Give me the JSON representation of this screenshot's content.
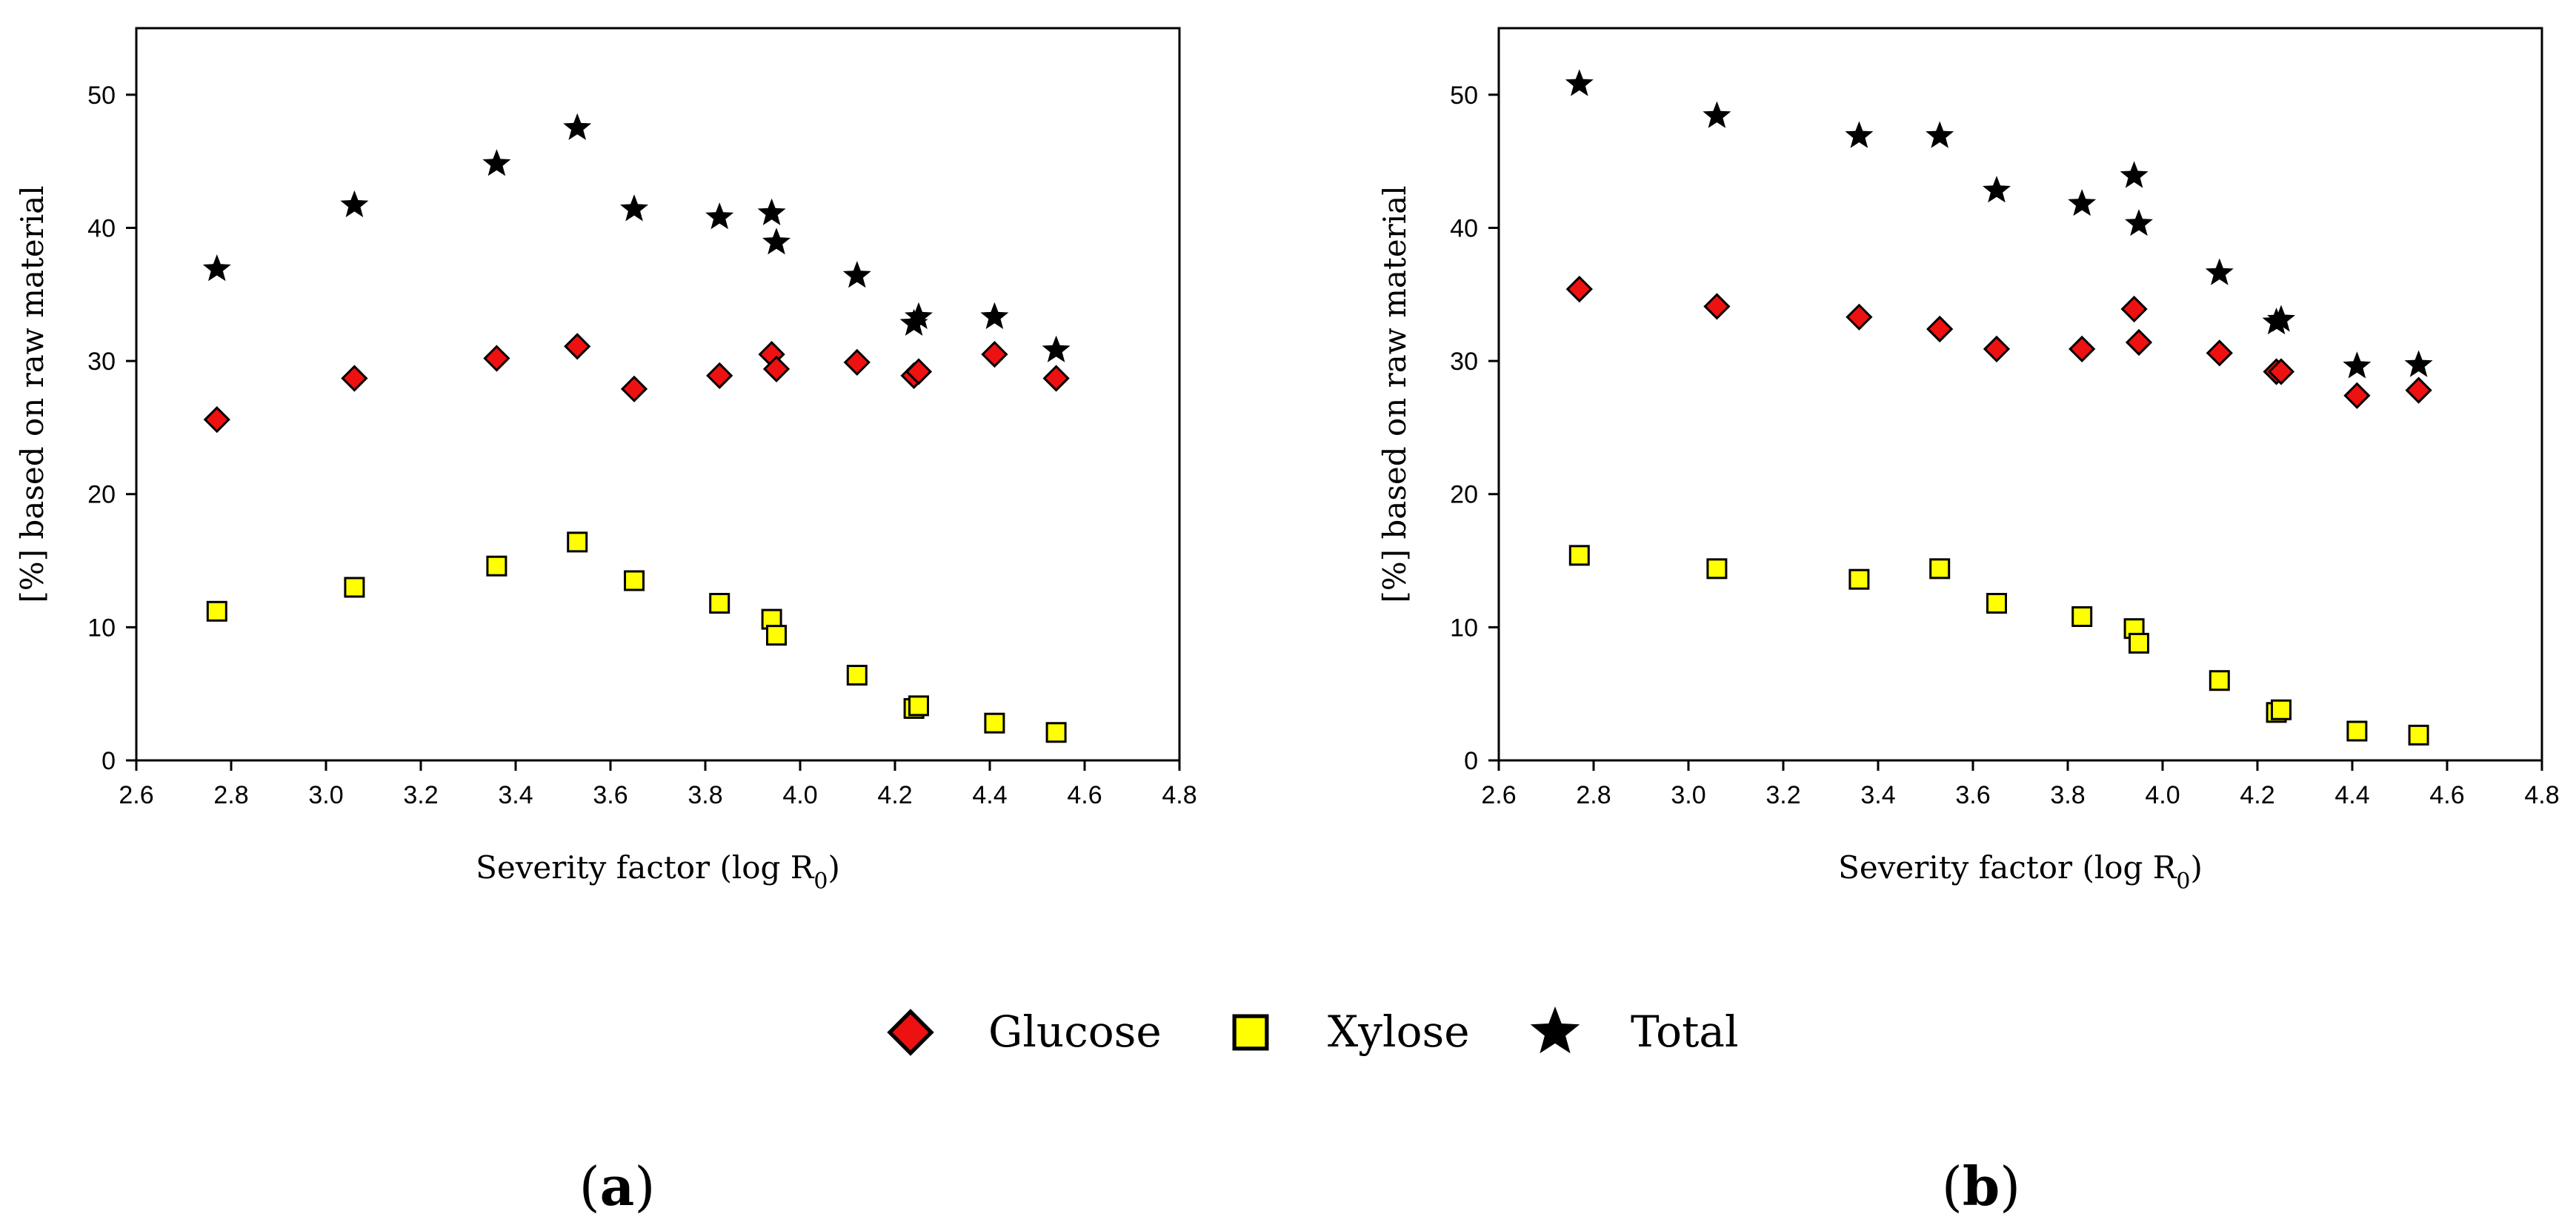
{
  "chart_data": [
    {
      "type": "scatter",
      "panel": "a",
      "xlabel_main": "Severity factor (log R",
      "xlabel_sub": "0",
      "xlabel_close": ")",
      "ylabel": "[%] based on raw material",
      "xlim": [
        2.6,
        4.8
      ],
      "ylim": [
        0,
        55
      ],
      "xticks": [
        "2.6",
        "2.8",
        "3.0",
        "3.2",
        "3.4",
        "3.6",
        "3.8",
        "4.0",
        "4.2",
        "4.4",
        "4.6",
        "4.8"
      ],
      "yticks": [
        "0",
        "10",
        "20",
        "30",
        "40",
        "50"
      ],
      "series": [
        {
          "name": "Glucose",
          "marker": "diamond",
          "x": [
            2.77,
            3.06,
            3.36,
            3.53,
            3.65,
            3.83,
            3.94,
            3.95,
            4.12,
            4.24,
            4.25,
            4.41,
            4.54
          ],
          "y": [
            25.6,
            28.7,
            30.2,
            31.1,
            27.9,
            28.9,
            30.5,
            29.4,
            29.9,
            28.9,
            29.2,
            30.5,
            28.7
          ]
        },
        {
          "name": "Xylose",
          "marker": "square",
          "x": [
            2.77,
            3.06,
            3.36,
            3.53,
            3.65,
            3.83,
            3.94,
            3.95,
            4.12,
            4.24,
            4.25,
            4.41,
            4.54
          ],
          "y": [
            11.2,
            13.0,
            14.6,
            16.4,
            13.5,
            11.8,
            10.6,
            9.4,
            6.4,
            3.9,
            4.1,
            2.8,
            2.1
          ]
        },
        {
          "name": "Total",
          "marker": "star",
          "x": [
            2.77,
            3.06,
            3.36,
            3.53,
            3.65,
            3.83,
            3.94,
            3.95,
            4.12,
            4.24,
            4.25,
            4.41,
            4.54
          ],
          "y": [
            36.9,
            41.7,
            44.8,
            47.5,
            41.4,
            40.8,
            41.1,
            38.9,
            36.4,
            32.8,
            33.3,
            33.3,
            30.8
          ]
        }
      ]
    },
    {
      "type": "scatter",
      "panel": "b",
      "xlabel_main": "Severity factor (log R",
      "xlabel_sub": "0",
      "xlabel_close": ")",
      "ylabel": "[%] based on raw material",
      "xlim": [
        2.6,
        4.8
      ],
      "ylim": [
        0,
        55
      ],
      "xticks": [
        "2.6",
        "2.8",
        "3.0",
        "3.2",
        "3.4",
        "3.6",
        "3.8",
        "4.0",
        "4.2",
        "4.4",
        "4.6",
        "4.8"
      ],
      "yticks": [
        "0",
        "10",
        "20",
        "30",
        "40",
        "50"
      ],
      "series": [
        {
          "name": "Glucose",
          "marker": "diamond",
          "x": [
            2.77,
            3.06,
            3.36,
            3.53,
            3.65,
            3.83,
            3.94,
            3.95,
            4.12,
            4.24,
            4.25,
            4.41,
            4.54
          ],
          "y": [
            35.4,
            34.1,
            33.3,
            32.4,
            30.9,
            30.9,
            33.9,
            31.4,
            30.6,
            29.2,
            29.2,
            27.4,
            27.8
          ]
        },
        {
          "name": "Xylose",
          "marker": "square",
          "x": [
            2.77,
            3.06,
            3.36,
            3.53,
            3.65,
            3.83,
            3.94,
            3.95,
            4.12,
            4.24,
            4.25,
            4.41,
            4.54
          ],
          "y": [
            15.4,
            14.4,
            13.6,
            14.4,
            11.8,
            10.8,
            9.9,
            8.8,
            6.0,
            3.6,
            3.8,
            2.2,
            1.9
          ]
        },
        {
          "name": "Total",
          "marker": "star",
          "x": [
            2.77,
            3.06,
            3.36,
            3.53,
            3.65,
            3.83,
            3.94,
            3.95,
            4.12,
            4.24,
            4.25,
            4.41,
            4.54
          ],
          "y": [
            50.8,
            48.4,
            46.9,
            46.9,
            42.8,
            41.8,
            43.9,
            40.3,
            36.6,
            32.9,
            33.1,
            29.6,
            29.7
          ]
        }
      ]
    }
  ],
  "legend": [
    {
      "label": "Glucose",
      "marker": "diamond"
    },
    {
      "label": "Xylose",
      "marker": "square"
    },
    {
      "label": "Total",
      "marker": "star"
    }
  ],
  "panel_labels": {
    "a": "a",
    "b": "b"
  },
  "colors": {
    "glucose_fill": "#ee1111",
    "xylose_fill": "#ffff00",
    "total_fill": "#000000",
    "stroke": "#000000"
  }
}
